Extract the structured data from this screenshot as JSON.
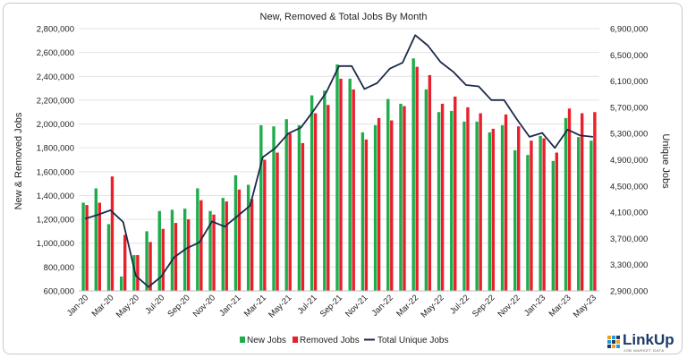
{
  "chart_data": {
    "type": "bar",
    "title": "New, Removed & Total Jobs By Month",
    "ylabel": "New & Removed Jobs",
    "y2label": "Unique Jobs",
    "ylim": [
      600000,
      2800000
    ],
    "y2lim": [
      2900000,
      6900000
    ],
    "yticks": [
      "600,000",
      "800,000",
      "1,000,000",
      "1,200,000",
      "1,400,000",
      "1,600,000",
      "1,800,000",
      "2,000,000",
      "2,200,000",
      "2,400,000",
      "2,600,000",
      "2,800,000"
    ],
    "y2ticks": [
      "2,900,000",
      "3,300,000",
      "3,700,000",
      "4,100,000",
      "4,500,000",
      "4,900,000",
      "5,300,000",
      "5,700,000",
      "6,100,000",
      "6,500,000",
      "6,900,000"
    ],
    "xticks": [
      "Jan-20",
      "Mar-20",
      "May-20",
      "Jul-20",
      "Sep-20",
      "Nov-20",
      "Jan-21",
      "Mar-21",
      "May-21",
      "Jul-21",
      "Sep-21",
      "Nov-21",
      "Jan-22",
      "Mar-22",
      "May-22",
      "Jul-22",
      "Sep-22",
      "Nov-22",
      "Jan-23",
      "Mar-23",
      "May-23"
    ],
    "categories": [
      "Jan-20",
      "Feb-20",
      "Mar-20",
      "Apr-20",
      "May-20",
      "Jun-20",
      "Jul-20",
      "Aug-20",
      "Sep-20",
      "Oct-20",
      "Nov-20",
      "Dec-20",
      "Jan-21",
      "Feb-21",
      "Mar-21",
      "Apr-21",
      "May-21",
      "Jun-21",
      "Jul-21",
      "Aug-21",
      "Sep-21",
      "Oct-21",
      "Nov-21",
      "Dec-21",
      "Jan-22",
      "Feb-22",
      "Mar-22",
      "Apr-22",
      "May-22",
      "Jun-22",
      "Jul-22",
      "Aug-22",
      "Sep-22",
      "Oct-22",
      "Nov-22",
      "Dec-22",
      "Jan-23",
      "Feb-23",
      "Mar-23",
      "Apr-23",
      "May-23"
    ],
    "series": [
      {
        "name": "New Jobs",
        "axis": "left",
        "kind": "bar",
        "color": "#1fad4b",
        "values": [
          1340000,
          1460000,
          1160000,
          720000,
          900000,
          1100000,
          1270000,
          1280000,
          1290000,
          1460000,
          1270000,
          1380000,
          1570000,
          1490000,
          1990000,
          1980000,
          2040000,
          1990000,
          2240000,
          2280000,
          2500000,
          2380000,
          1930000,
          1990000,
          2210000,
          2170000,
          2550000,
          2290000,
          2100000,
          2110000,
          2020000,
          2020000,
          1930000,
          1990000,
          1780000,
          1740000,
          1900000,
          1690000,
          2050000,
          1890000,
          1860000
        ]
      },
      {
        "name": "Removed Jobs",
        "axis": "left",
        "kind": "bar",
        "color": "#e8202a",
        "values": [
          1320000,
          1340000,
          1560000,
          1070000,
          900000,
          1010000,
          1120000,
          1170000,
          1200000,
          1360000,
          1240000,
          1350000,
          1450000,
          1370000,
          1700000,
          1760000,
          1920000,
          1840000,
          2090000,
          2160000,
          2380000,
          2290000,
          1870000,
          2050000,
          2030000,
          2150000,
          2480000,
          2410000,
          2170000,
          2230000,
          2140000,
          2090000,
          1960000,
          2080000,
          1980000,
          1860000,
          1880000,
          1760000,
          2130000,
          2090000,
          2100000
        ]
      },
      {
        "name": "Total Unique Jobs",
        "axis": "right",
        "kind": "line",
        "color": "#1c2a4a",
        "values": [
          4000000,
          4060000,
          4130000,
          3950000,
          3130000,
          2960000,
          3120000,
          3410000,
          3550000,
          3640000,
          3960000,
          3880000,
          4040000,
          4200000,
          4940000,
          5080000,
          5300000,
          5390000,
          5650000,
          5930000,
          6330000,
          6330000,
          5980000,
          6070000,
          6290000,
          6380000,
          6800000,
          6640000,
          6390000,
          6240000,
          6040000,
          6020000,
          5810000,
          5810000,
          5520000,
          5250000,
          5310000,
          5080000,
          5360000,
          5270000,
          5250000
        ]
      }
    ],
    "legend": [
      "New Jobs",
      "Removed Jobs",
      "Total Unique Jobs"
    ],
    "legend_position": "bottom",
    "grid": true
  },
  "logo": {
    "text": "LinkUp",
    "tagline": "JOB MARKET DATA"
  }
}
